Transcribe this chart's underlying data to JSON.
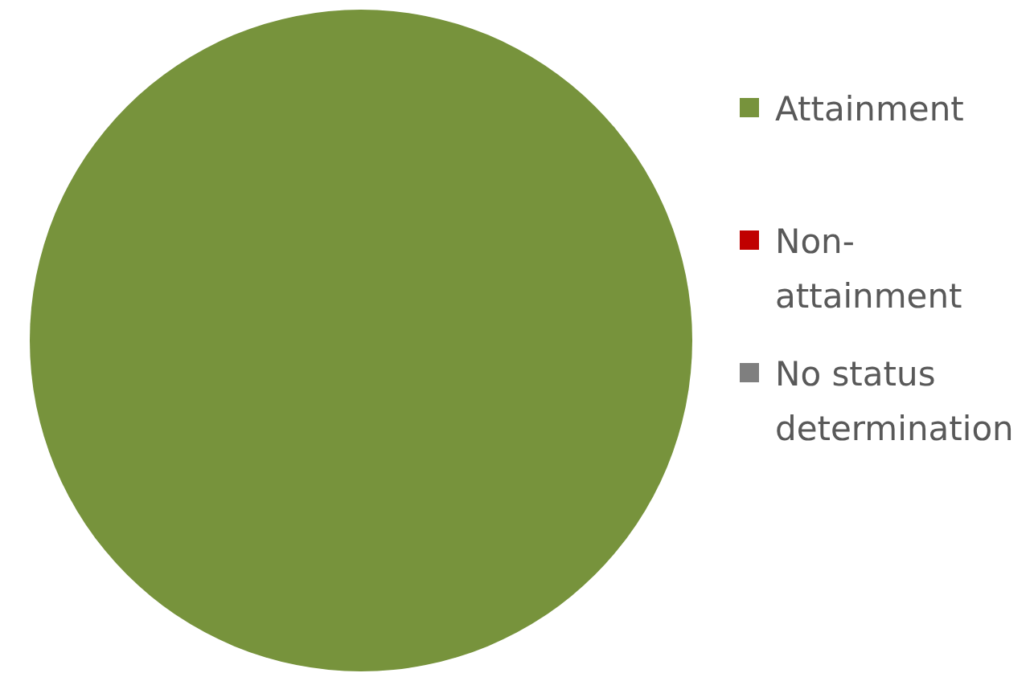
{
  "chart_data": {
    "type": "pie",
    "categories": [
      "Attainment",
      "Non-attainment",
      "No status determination"
    ],
    "values": [
      100,
      0,
      0
    ],
    "colors": [
      "#77933c",
      "#c00000",
      "#7f7f7f"
    ],
    "legend": "right"
  }
}
